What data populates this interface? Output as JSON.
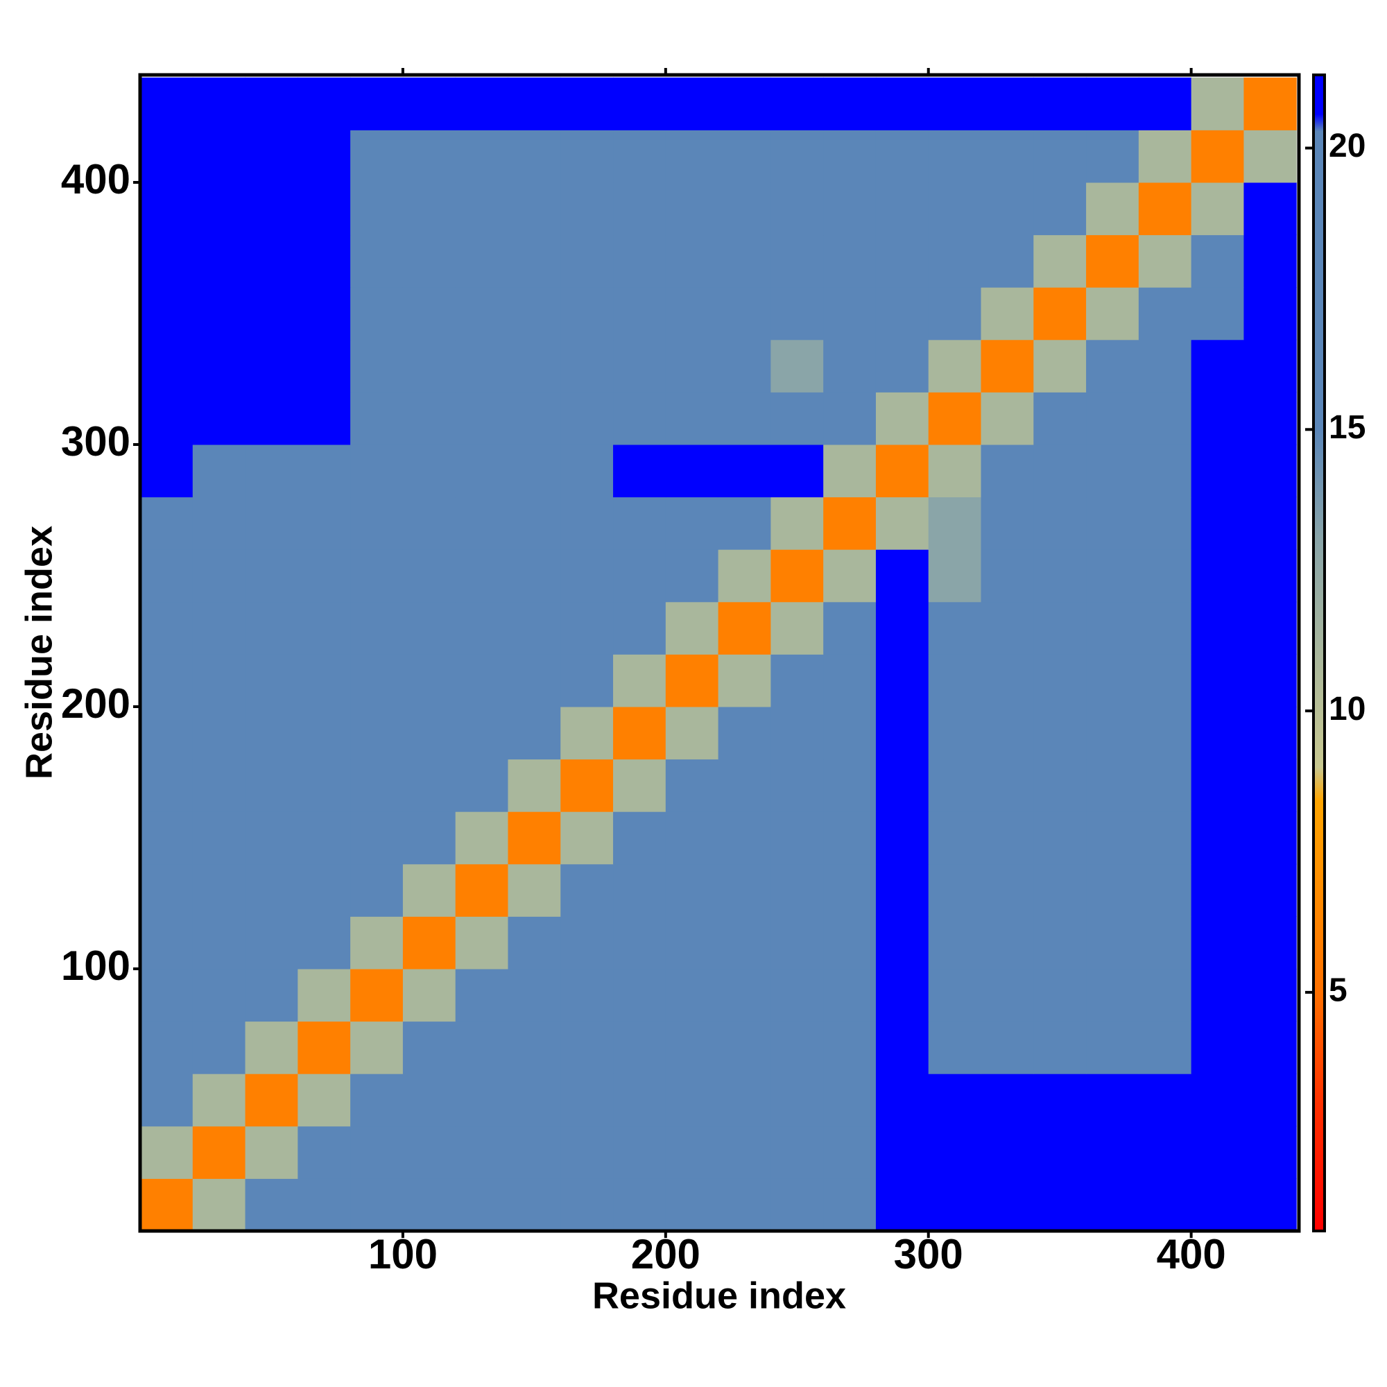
{
  "chart_data": {
    "type": "heatmap",
    "xlabel": "Residue index",
    "ylabel": "Residue index",
    "x_bins": [
      0,
      20,
      40,
      60,
      80,
      100,
      120,
      140,
      160,
      180,
      200,
      220,
      240,
      260,
      280,
      300,
      320,
      340,
      360,
      380,
      400,
      420,
      440
    ],
    "y_bins": [
      0,
      20,
      40,
      60,
      80,
      100,
      120,
      140,
      160,
      180,
      200,
      220,
      240,
      260,
      280,
      300,
      320,
      340,
      360,
      380,
      400,
      420,
      440
    ],
    "z": [
      [
        6,
        11,
        16,
        16,
        16,
        16,
        16,
        16,
        16,
        17,
        17,
        17,
        17,
        17,
        21,
        21,
        21,
        21,
        21,
        21,
        21,
        21
      ],
      [
        11,
        6,
        11,
        16,
        16,
        16,
        16,
        16,
        16,
        16,
        17,
        17,
        17,
        17,
        21,
        21,
        21,
        21,
        21,
        21,
        21,
        21
      ],
      [
        16,
        11,
        6,
        11,
        16,
        16,
        16,
        16,
        16,
        16,
        16,
        17,
        17,
        17,
        21,
        21,
        21,
        21,
        21,
        21,
        21,
        21
      ],
      [
        16,
        16,
        11,
        6,
        11,
        16,
        16,
        16,
        16,
        16,
        16,
        16,
        17,
        17,
        21,
        17,
        17,
        17,
        17,
        17,
        21,
        21
      ],
      [
        16,
        16,
        16,
        11,
        6,
        11,
        16,
        16,
        16,
        16,
        16,
        16,
        16,
        17,
        21,
        17,
        17,
        17,
        17,
        17,
        21,
        21
      ],
      [
        16,
        16,
        16,
        16,
        11,
        6,
        11,
        16,
        16,
        16,
        16,
        16,
        16,
        16,
        21,
        17,
        17,
        17,
        17,
        17,
        21,
        21
      ],
      [
        16,
        16,
        16,
        16,
        16,
        11,
        6,
        11,
        16,
        16,
        16,
        16,
        16,
        16,
        21,
        17,
        17,
        17,
        17,
        17,
        21,
        21
      ],
      [
        16,
        16,
        16,
        16,
        16,
        16,
        11,
        6,
        11,
        16,
        16,
        16,
        16,
        16,
        21,
        17,
        17,
        17,
        17,
        17,
        21,
        21
      ],
      [
        16,
        16,
        16,
        16,
        16,
        16,
        16,
        11,
        6,
        11,
        16,
        16,
        16,
        16,
        21,
        17,
        17,
        17,
        17,
        17,
        21,
        21
      ],
      [
        17,
        16,
        16,
        16,
        16,
        16,
        16,
        16,
        11,
        6,
        11,
        16,
        16,
        16,
        21,
        17,
        17,
        17,
        17,
        17,
        21,
        21
      ],
      [
        17,
        17,
        16,
        16,
        16,
        16,
        16,
        16,
        16,
        11,
        6,
        11,
        16,
        16,
        21,
        17,
        17,
        17,
        17,
        17,
        21,
        21
      ],
      [
        17,
        17,
        17,
        16,
        16,
        16,
        16,
        16,
        16,
        16,
        11,
        6,
        11,
        16,
        21,
        17,
        17,
        17,
        17,
        17,
        21,
        21
      ],
      [
        17,
        17,
        17,
        17,
        16,
        16,
        16,
        16,
        16,
        16,
        16,
        11,
        6,
        11,
        21,
        13,
        17,
        17,
        17,
        17,
        21,
        21
      ],
      [
        17,
        17,
        17,
        17,
        17,
        16,
        16,
        16,
        16,
        16,
        16,
        16,
        11,
        6,
        11,
        13,
        17,
        17,
        17,
        17,
        21,
        21
      ],
      [
        21,
        17,
        17,
        17,
        17,
        17,
        17,
        17,
        17,
        21,
        21,
        21,
        21,
        11,
        6,
        11,
        17,
        17,
        17,
        17,
        21,
        21
      ],
      [
        21,
        21,
        21,
        21,
        17,
        17,
        17,
        17,
        17,
        17,
        17,
        17,
        15,
        15,
        11,
        6,
        11,
        15,
        15,
        15,
        21,
        21
      ],
      [
        21,
        21,
        21,
        21,
        17,
        17,
        17,
        17,
        17,
        17,
        17,
        17,
        13,
        17,
        17,
        11,
        6,
        11,
        15,
        15,
        21,
        21
      ],
      [
        21,
        21,
        21,
        21,
        17,
        17,
        17,
        17,
        17,
        17,
        17,
        17,
        17,
        17,
        17,
        15,
        11,
        6,
        11,
        15,
        15,
        21
      ],
      [
        21,
        21,
        21,
        21,
        17,
        17,
        17,
        17,
        17,
        17,
        17,
        17,
        17,
        17,
        17,
        15,
        15,
        11,
        6,
        11,
        15,
        21
      ],
      [
        21,
        21,
        21,
        21,
        17,
        17,
        17,
        17,
        17,
        17,
        17,
        17,
        17,
        17,
        17,
        15,
        15,
        15,
        11,
        6,
        11,
        21
      ],
      [
        21,
        21,
        21,
        21,
        17,
        17,
        17,
        17,
        17,
        17,
        17,
        17,
        17,
        17,
        17,
        17,
        15,
        15,
        15,
        11,
        6,
        11
      ],
      [
        21,
        21,
        21,
        21,
        21,
        21,
        21,
        21,
        21,
        21,
        21,
        21,
        21,
        21,
        21,
        21,
        21,
        21,
        21,
        21,
        11,
        6
      ]
    ],
    "xlim": [
      0,
      441
    ],
    "ylim": [
      0,
      441
    ],
    "xticks": [
      100,
      200,
      300,
      400
    ],
    "yticks": [
      100,
      200,
      300,
      400
    ],
    "clim": [
      0.76,
      21.3
    ],
    "cticks": [
      5,
      10,
      15,
      20
    ],
    "colorscale": [
      [
        0.76,
        "#ff0000"
      ],
      [
        3,
        "#ff3000"
      ],
      [
        5,
        "#ff7000"
      ],
      [
        8.4,
        "#ffa500"
      ],
      [
        9,
        "#c8c890"
      ],
      [
        13,
        "#8aa5a8"
      ],
      [
        15,
        "#5b86b8"
      ],
      [
        20.3,
        "#5b86b8"
      ],
      [
        20.6,
        "#0000ff"
      ],
      [
        21.3,
        "#0000ff"
      ]
    ]
  }
}
